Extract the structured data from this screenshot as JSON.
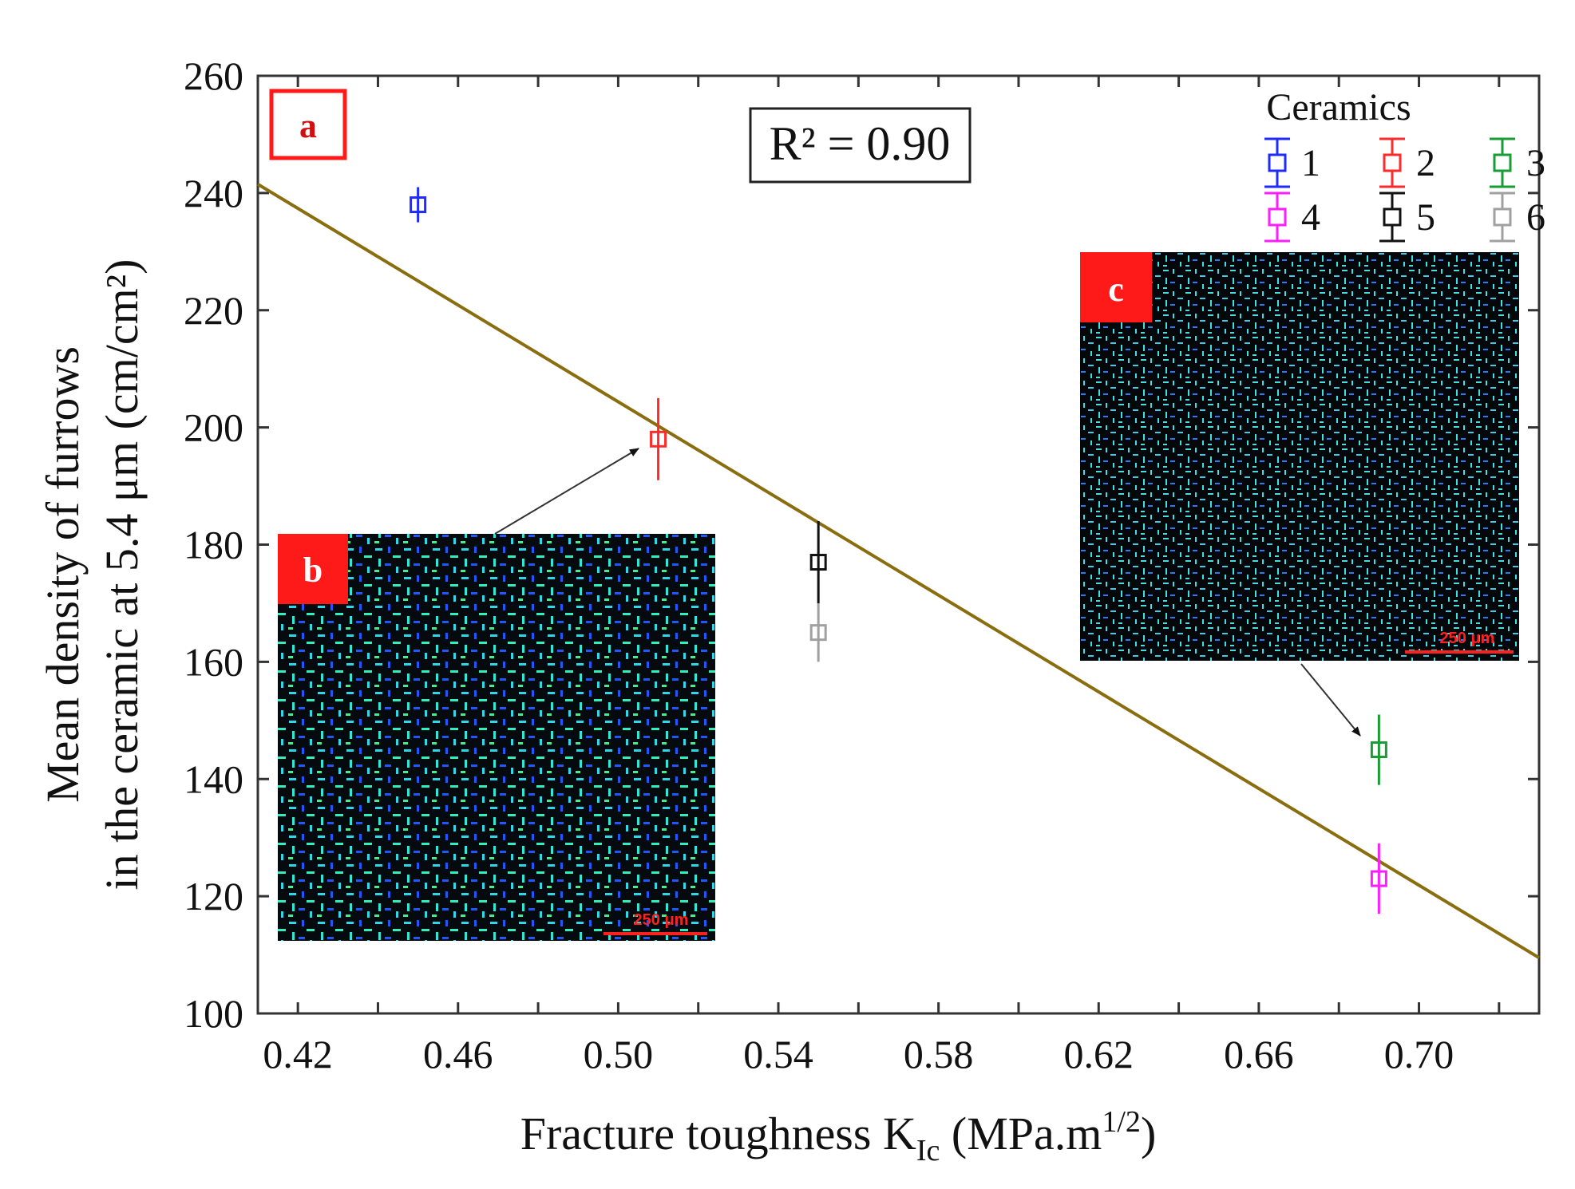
{
  "chart_data": {
    "type": "scatter",
    "xlabel": "Fracture toughness K",
    "xlabel_sub": "Ic",
    "xlabel_unit": " (MPa.m",
    "xlabel_sup": "1/2",
    "xlabel_close": ")",
    "ylabel_line1": "Mean density of furrows",
    "ylabel_line2": "in the ceramic at 5.4 μm (cm/cm²)",
    "xlim": [
      0.41,
      0.73
    ],
    "ylim": [
      100,
      260
    ],
    "x_ticks": [
      0.42,
      0.46,
      0.5,
      0.54,
      0.58,
      0.62,
      0.66,
      0.7
    ],
    "x_tick_labels": [
      "0.42",
      "0.46",
      "0.50",
      "0.54",
      "0.58",
      "0.62",
      "0.66",
      "0.70"
    ],
    "y_ticks": [
      100,
      120,
      140,
      160,
      180,
      200,
      220,
      240,
      260
    ],
    "y_tick_labels": [
      "100",
      "120",
      "140",
      "160",
      "180",
      "200",
      "220",
      "240",
      "260"
    ],
    "grid": false,
    "legend_position": "top-right",
    "legend_title": "Ceramics",
    "series": [
      {
        "name": "1",
        "color": "#1f2bff",
        "x": 0.45,
        "y": 238,
        "yerr": 3
      },
      {
        "name": "2",
        "color": "#ff2b2b",
        "x": 0.51,
        "y": 198,
        "yerr": 7
      },
      {
        "name": "3",
        "color": "#1a9c35",
        "x": 0.69,
        "y": 145,
        "yerr": 6
      },
      {
        "name": "4",
        "color": "#ff1cff",
        "x": 0.69,
        "y": 123,
        "yerr": 6
      },
      {
        "name": "5",
        "color": "#111111",
        "x": 0.55,
        "y": 177,
        "yerr": 7
      },
      {
        "name": "6",
        "color": "#a0a0a0",
        "x": 0.55,
        "y": 165,
        "yerr": 5
      }
    ],
    "fit_line": {
      "color": "#8a6d0e",
      "x": [
        0.41,
        0.73
      ],
      "y": [
        241.5,
        109.5
      ]
    },
    "annotations": {
      "r2": "R² = 0.90",
      "panel_a": "a",
      "panel_b": "b",
      "panel_c": "c",
      "scale_bar_label": "250 μm"
    },
    "insets": [
      {
        "panel": "b",
        "points_to_series": "2",
        "dominant_color": "#2fe8d8"
      },
      {
        "panel": "c",
        "points_to_series": "3",
        "dominant_color": "#3ee0e8"
      }
    ]
  }
}
